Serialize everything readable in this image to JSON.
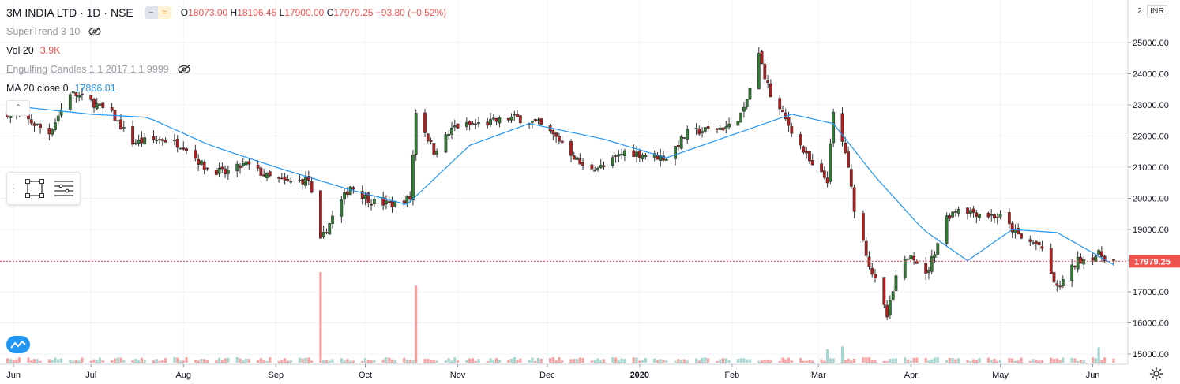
{
  "header": {
    "symbol": "3M INDIA LTD · 1D · NSE",
    "ohlc": {
      "o_label": "O",
      "o": "18073.00",
      "h_label": "H",
      "h": "18196.45",
      "l_label": "L",
      "l": "17900.00",
      "c_label": "C",
      "c": "17979.25",
      "change": "−93.80 (−0.52%)"
    }
  },
  "indicators": {
    "supertrend": {
      "name": "SuperTrend 3 10"
    },
    "volume": {
      "name": "Vol 20",
      "value": "3.9K"
    },
    "engulfing": {
      "name": "Engulfing Candles 1 1 2017 1 1 9999"
    },
    "ma": {
      "name": "MA 20 close 0",
      "value": "17866.01"
    }
  },
  "price_scale": {
    "top_label": "2",
    "currency": "INR",
    "ticks": [
      "25000.00",
      "24000.00",
      "23000.00",
      "22000.00",
      "21000.00",
      "20000.00",
      "19000.00",
      "18000.00",
      "17000.00",
      "16000.00",
      "15000.00"
    ],
    "last_price": "17979.25"
  },
  "time_scale": {
    "ticks": [
      "Jun",
      "Jul",
      "Aug",
      "Sep",
      "Oct",
      "Nov",
      "Dec",
      "2020",
      "Feb",
      "Mar",
      "Apr",
      "May",
      "Jun"
    ]
  },
  "colors": {
    "up": "#26a69a",
    "down": "#ef5350",
    "up_candle_fill": "#2e7d32",
    "down_candle_fill": "#b71c1c",
    "ma_line": "#2196f3",
    "vol_up": "#a5d6d0",
    "vol_down": "#f5a3a3",
    "grid": "#f0f3fa",
    "price_line": "#ef5350"
  },
  "icons": [
    "eye-off-icon",
    "collapse-chevron-icon",
    "rectangle-tool-icon",
    "menu-lines-icon",
    "tradingview-logo-icon",
    "settings-gear-icon"
  ],
  "chart_data": {
    "type": "candlestick",
    "xlabel": "",
    "ylabel": "",
    "ylim": [
      15000,
      25300
    ],
    "grid": true,
    "last_price": 17979.25,
    "anchors": [
      {
        "d": "2019-06-01",
        "p": 22800
      },
      {
        "d": "2019-06-10",
        "p": 22500
      },
      {
        "d": "2019-06-17",
        "p": 22100
      },
      {
        "d": "2019-06-24",
        "p": 23400
      },
      {
        "d": "2019-07-01",
        "p": 23100
      },
      {
        "d": "2019-07-08",
        "p": 22700
      },
      {
        "d": "2019-07-15",
        "p": 21800
      },
      {
        "d": "2019-07-25",
        "p": 21900
      },
      {
        "d": "2019-08-01",
        "p": 21700
      },
      {
        "d": "2019-08-08",
        "p": 21000
      },
      {
        "d": "2019-08-15",
        "p": 20800
      },
      {
        "d": "2019-08-22",
        "p": 21100
      },
      {
        "d": "2019-08-29",
        "p": 20700
      },
      {
        "d": "2019-09-05",
        "p": 20500
      },
      {
        "d": "2019-09-12",
        "p": 20600
      },
      {
        "d": "2019-09-16",
        "p": 18600
      },
      {
        "d": "2019-09-20",
        "p": 19400
      },
      {
        "d": "2019-09-26",
        "p": 20400
      },
      {
        "d": "2019-10-03",
        "p": 19900
      },
      {
        "d": "2019-10-10",
        "p": 19800
      },
      {
        "d": "2019-10-16",
        "p": 20000
      },
      {
        "d": "2019-10-18",
        "p": 22800
      },
      {
        "d": "2019-10-24",
        "p": 21500
      },
      {
        "d": "2019-10-31",
        "p": 22300
      },
      {
        "d": "2019-11-10",
        "p": 22400
      },
      {
        "d": "2019-11-20",
        "p": 22600
      },
      {
        "d": "2019-11-28",
        "p": 22400
      },
      {
        "d": "2019-12-06",
        "p": 21800
      },
      {
        "d": "2019-12-13",
        "p": 21000
      },
      {
        "d": "2019-12-20",
        "p": 21000
      },
      {
        "d": "2019-12-27",
        "p": 21500
      },
      {
        "d": "2020-01-03",
        "p": 21400
      },
      {
        "d": "2020-01-10",
        "p": 21300
      },
      {
        "d": "2020-01-17",
        "p": 22100
      },
      {
        "d": "2020-01-24",
        "p": 22200
      },
      {
        "d": "2020-01-31",
        "p": 22300
      },
      {
        "d": "2020-02-05",
        "p": 22800
      },
      {
        "d": "2020-02-10",
        "p": 24600
      },
      {
        "d": "2020-02-14",
        "p": 23300
      },
      {
        "d": "2020-02-21",
        "p": 22200
      },
      {
        "d": "2020-02-28",
        "p": 21000
      },
      {
        "d": "2020-03-04",
        "p": 20600
      },
      {
        "d": "2020-03-06",
        "p": 22700
      },
      {
        "d": "2020-03-10",
        "p": 21500
      },
      {
        "d": "2020-03-13",
        "p": 19700
      },
      {
        "d": "2020-03-18",
        "p": 17900
      },
      {
        "d": "2020-03-24",
        "p": 16200
      },
      {
        "d": "2020-03-27",
        "p": 17400
      },
      {
        "d": "2020-04-01",
        "p": 18300
      },
      {
        "d": "2020-04-06",
        "p": 17500
      },
      {
        "d": "2020-04-13",
        "p": 19400
      },
      {
        "d": "2020-04-17",
        "p": 19700
      },
      {
        "d": "2020-04-24",
        "p": 19500
      },
      {
        "d": "2020-05-01",
        "p": 19400
      },
      {
        "d": "2020-05-08",
        "p": 18700
      },
      {
        "d": "2020-05-14",
        "p": 18500
      },
      {
        "d": "2020-05-20",
        "p": 17100
      },
      {
        "d": "2020-05-27",
        "p": 18000
      },
      {
        "d": "2020-06-03",
        "p": 18200
      },
      {
        "d": "2020-06-08",
        "p": 17980
      }
    ],
    "ma_anchors": [
      {
        "d": "2019-06-01",
        "p": 23000
      },
      {
        "d": "2019-07-01",
        "p": 22700
      },
      {
        "d": "2019-07-20",
        "p": 22600
      },
      {
        "d": "2019-08-10",
        "p": 21700
      },
      {
        "d": "2019-09-01",
        "p": 21000
      },
      {
        "d": "2019-09-25",
        "p": 20300
      },
      {
        "d": "2019-10-15",
        "p": 19800
      },
      {
        "d": "2019-11-05",
        "p": 21700
      },
      {
        "d": "2019-11-25",
        "p": 22400
      },
      {
        "d": "2019-12-20",
        "p": 21900
      },
      {
        "d": "2020-01-10",
        "p": 21300
      },
      {
        "d": "2020-01-31",
        "p": 22000
      },
      {
        "d": "2020-02-21",
        "p": 22700
      },
      {
        "d": "2020-03-06",
        "p": 22400
      },
      {
        "d": "2020-03-20",
        "p": 20700
      },
      {
        "d": "2020-04-05",
        "p": 19000
      },
      {
        "d": "2020-04-20",
        "p": 18000
      },
      {
        "d": "2020-05-05",
        "p": 19000
      },
      {
        "d": "2020-05-20",
        "p": 18900
      },
      {
        "d": "2020-06-08",
        "p": 17870
      }
    ],
    "volume_spikes": [
      {
        "d": "2019-09-16",
        "v": 10
      },
      {
        "d": "2019-10-18",
        "v": 8.5
      },
      {
        "d": "2020-03-09",
        "v": 1.8
      },
      {
        "d": "2020-03-04",
        "v": 1.5
      },
      {
        "d": "2020-06-03",
        "v": 1.7
      }
    ]
  }
}
